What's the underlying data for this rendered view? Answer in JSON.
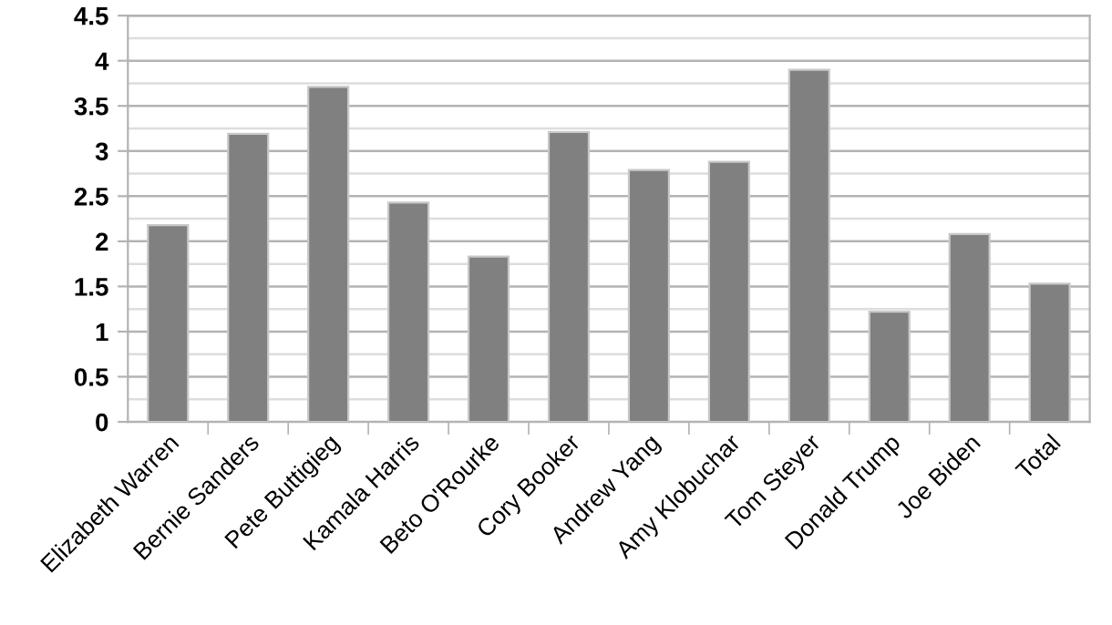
{
  "chart_data": {
    "type": "bar",
    "categories": [
      "Elizabeth Warren",
      "Bernie Sanders",
      "Pete Buttigieg",
      "Kamala Harris",
      "Beto O'Rourke",
      "Cory Booker",
      "Andrew Yang",
      "Amy Klobuchar",
      "Tom Steyer",
      "Donald Trump",
      "Joe Biden",
      "Total"
    ],
    "values": [
      2.18,
      3.19,
      3.71,
      2.43,
      1.83,
      3.21,
      2.79,
      2.88,
      3.9,
      1.22,
      2.08,
      1.53
    ],
    "color": "#808080",
    "ylim": [
      0,
      4.5
    ],
    "yticks": [
      0,
      {
        "value": 0.25,
        "label": null
      },
      0.5,
      {
        "value": 0.75,
        "label": null
      },
      1,
      {
        "value": 1.25,
        "label": null
      },
      1.5,
      {
        "value": 1.75,
        "label": null
      },
      2,
      {
        "value": 2.25,
        "label": null
      },
      2.5,
      {
        "value": 2.75,
        "label": null
      },
      3,
      {
        "value": 3.25,
        "label": null
      },
      3.5,
      {
        "value": 3.75,
        "label": null
      },
      4,
      {
        "value": 4.25,
        "label": null
      },
      4.5
    ],
    "grid": "y"
  }
}
